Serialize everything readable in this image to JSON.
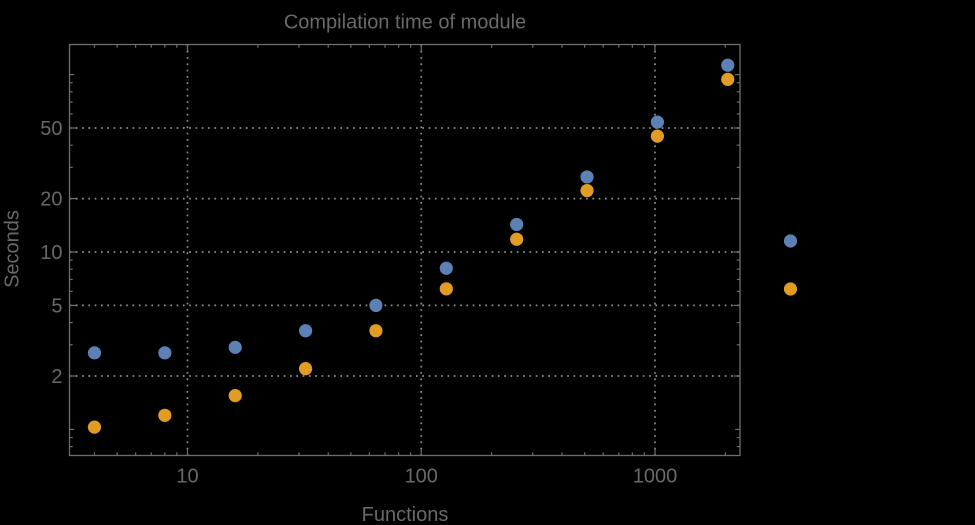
{
  "chart_data": {
    "type": "scatter",
    "title": "Compilation time of module",
    "xlabel": "Functions",
    "ylabel": "Seconds",
    "x_scale": "log",
    "y_scale": "log",
    "x_range": [
      3.1,
      2320
    ],
    "y_range": [
      0.7,
      148
    ],
    "grid": "dotted gridlines at labeled major ticks only",
    "legend_position": "right of frame, vertically centered, labels not visible",
    "x_ticks": {
      "values": [
        10,
        100,
        1000
      ],
      "labels": [
        "10",
        "100",
        "1000"
      ]
    },
    "y_ticks": {
      "values": [
        2,
        5,
        10,
        20,
        50
      ],
      "labels": [
        "2",
        "5",
        "10",
        "20",
        "50"
      ]
    },
    "x_minor_ticks": [
      4,
      5,
      6,
      7,
      8,
      9,
      20,
      30,
      40,
      50,
      60,
      70,
      80,
      90,
      200,
      300,
      400,
      500,
      600,
      700,
      800,
      900,
      2000
    ],
    "y_minor_ticks": [
      0.8,
      0.9,
      3,
      4,
      6,
      7,
      8,
      9,
      30,
      40,
      60,
      70,
      80,
      90
    ],
    "y_medium_ticks": [
      1,
      100
    ],
    "x": [
      4,
      8,
      16,
      32,
      64,
      128,
      256,
      512,
      1024,
      2048
    ],
    "series": [
      {
        "name": "series-1",
        "color": "#5E81B5",
        "values": [
          2.7,
          2.7,
          2.9,
          3.6,
          5.0,
          8.1,
          14.3,
          26.5,
          54,
          113
        ]
      },
      {
        "name": "series-2",
        "color": "#E19C24",
        "values": [
          1.03,
          1.2,
          1.55,
          2.2,
          3.6,
          6.2,
          11.8,
          22.2,
          45,
          94
        ]
      }
    ],
    "legend": {
      "markers": [
        {
          "series": "series-1",
          "color": "#5E81B5"
        },
        {
          "series": "series-2",
          "color": "#E19C24"
        }
      ],
      "labels_visible": false
    }
  },
  "colors": {
    "background": "#000000",
    "frame": "#6E6E6E",
    "grid": "#8F8F8F",
    "text": "#696969"
  }
}
